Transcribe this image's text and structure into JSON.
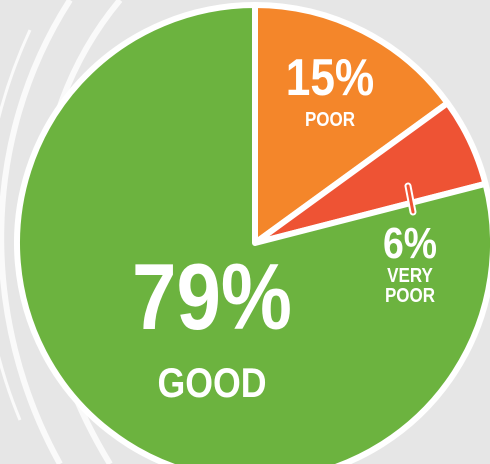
{
  "chart_data": {
    "type": "pie",
    "categories": [
      "POOR",
      "VERY POOR",
      "GOOD"
    ],
    "values": [
      15,
      6,
      79
    ],
    "value_labels": [
      "15%",
      "6%",
      "79%"
    ],
    "colors": [
      "#f4862a",
      "#ee5334",
      "#6cb33f"
    ]
  }
}
